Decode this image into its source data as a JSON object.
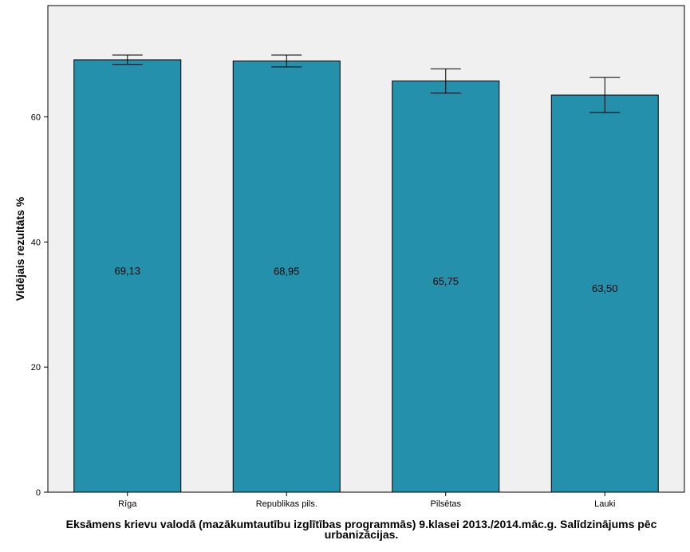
{
  "chart_data": {
    "type": "bar",
    "categories": [
      "Rīga",
      "Republikas pils.",
      "Pilsētas",
      "Lauki"
    ],
    "values": [
      69.13,
      68.95,
      65.75,
      63.5
    ],
    "value_labels": [
      "69,13",
      "68,95",
      "65,75",
      "63,50"
    ],
    "error_bars": [
      {
        "low": 68.4,
        "high": 69.9
      },
      {
        "low": 68.0,
        "high": 69.9
      },
      {
        "low": 63.8,
        "high": 67.7
      },
      {
        "low": 60.7,
        "high": 66.3
      }
    ],
    "ylabel": "Vidējais rezultāts %",
    "xlabel_lines": [
      "Eksāmens krievu valodā (mazākumtautību izglītības programmās) 9.klasei 2013./2014.māc.g. Salīdzinājums pēc",
      "urbanizācijas."
    ],
    "ylim": [
      0,
      77.8
    ],
    "yticks": [
      0,
      20,
      40,
      60
    ],
    "ytick_labels": [
      "0",
      "20",
      "40",
      "60"
    ],
    "colors": {
      "bar": "#2490ab",
      "plot_background": "#f0f0f0",
      "axis": "#000000"
    },
    "grid": false
  }
}
